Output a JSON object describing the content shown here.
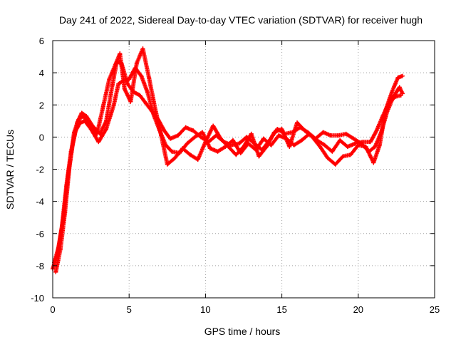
{
  "chart_data": {
    "type": "scatter",
    "title": "Day 241 of 2022, Sidereal Day-to-day VTEC variation (SDTVAR) for receiver hugh",
    "xlabel": "GPS time / hours",
    "ylabel": "SDTVAR / TECUs",
    "xlim": [
      0,
      25
    ],
    "ylim": [
      -10,
      6
    ],
    "xticks": [
      0,
      5,
      10,
      15,
      20,
      25
    ],
    "yticks": [
      -10,
      -8,
      -6,
      -4,
      -2,
      0,
      2,
      4,
      6
    ],
    "grid": true,
    "marker": "+",
    "series_color": "#ff0000",
    "series": [
      {
        "name": "trace-1",
        "x": [
          0.0,
          0.3,
          0.6,
          0.9,
          1.2,
          1.5,
          1.8,
          2.1,
          2.5,
          3.0,
          3.5,
          4.0,
          4.3,
          4.6,
          5.0,
          5.4,
          5.8,
          6.2,
          6.6,
          7.0,
          7.4,
          7.8,
          8.3,
          8.8,
          9.3,
          9.8,
          10.3,
          10.8,
          11.3,
          11.8,
          12.3,
          12.8,
          13.3,
          13.8,
          14.3,
          14.8,
          15.3,
          15.8,
          16.3,
          16.8,
          17.3,
          17.8,
          18.3,
          18.8,
          19.3,
          19.8,
          20.3,
          20.8,
          21.2,
          21.6,
          22.0,
          22.4,
          22.8
        ],
        "y": [
          -8.2,
          -7.3,
          -5.6,
          -3.0,
          -0.9,
          0.4,
          0.9,
          1.0,
          0.5,
          -0.3,
          0.5,
          2.0,
          3.3,
          3.5,
          3.6,
          4.3,
          3.8,
          2.8,
          1.4,
          0.4,
          -0.5,
          -0.9,
          -1.0,
          -0.4,
          0.0,
          0.3,
          -0.7,
          -0.9,
          -0.6,
          -0.2,
          -1.0,
          -0.4,
          -0.8,
          -0.1,
          -0.5,
          0.1,
          -0.1,
          -0.5,
          -0.2,
          0.2,
          -0.2,
          -0.5,
          -0.9,
          -0.2,
          -0.6,
          -0.4,
          -0.3,
          -0.3,
          0.4,
          1.3,
          2.1,
          2.5,
          2.6
        ]
      },
      {
        "name": "trace-2",
        "x": [
          0.1,
          0.4,
          0.7,
          1.0,
          1.3,
          1.6,
          1.9,
          2.2,
          2.6,
          3.1,
          3.5,
          3.9,
          4.2,
          4.5,
          4.9,
          5.3,
          5.7,
          6.1,
          6.5,
          6.9,
          7.3,
          7.7,
          8.2,
          8.7,
          9.2,
          9.7,
          10.2,
          10.7,
          11.2,
          11.7,
          12.2,
          12.7,
          13.2,
          13.7,
          14.2,
          14.7,
          15.2,
          15.7,
          16.2,
          16.7,
          17.2,
          17.7,
          18.2,
          18.7,
          19.2,
          19.7,
          20.2,
          20.7,
          21.1,
          21.5,
          21.9,
          22.3,
          22.7,
          22.9
        ],
        "y": [
          -7.8,
          -6.8,
          -5.0,
          -2.4,
          -0.5,
          0.9,
          1.5,
          1.3,
          0.7,
          0.2,
          1.0,
          3.2,
          4.7,
          4.6,
          3.3,
          2.8,
          2.6,
          2.1,
          1.6,
          1.1,
          0.4,
          -0.1,
          0.1,
          0.6,
          0.4,
          0.0,
          -0.3,
          0.1,
          -0.3,
          -0.5,
          -0.4,
          0.0,
          -0.4,
          -0.8,
          -0.2,
          0.5,
          0.2,
          0.3,
          0.6,
          0.3,
          -0.1,
          0.3,
          0.1,
          0.1,
          0.2,
          -0.1,
          -0.4,
          -0.9,
          -0.6,
          0.3,
          1.6,
          2.5,
          3.1,
          2.7
        ]
      },
      {
        "name": "trace-3",
        "x": [
          0.2,
          0.5,
          0.8,
          1.1,
          1.4,
          1.7,
          2.0,
          2.4,
          2.9,
          3.3,
          3.7,
          4.1,
          4.4,
          4.7,
          5.1,
          5.5,
          5.9,
          6.3,
          6.7,
          7.1,
          7.5,
          8.0,
          8.5,
          9.0,
          9.5,
          10.0,
          10.5,
          11.0,
          11.5,
          12.0,
          12.5,
          13.0,
          13.5,
          14.0,
          14.5,
          15.0,
          15.5,
          16.0,
          16.5,
          17.0,
          17.5,
          18.0,
          18.5,
          19.0,
          19.5,
          20.0,
          20.5,
          21.0,
          21.4,
          21.8,
          22.2,
          22.6,
          22.9
        ],
        "y": [
          -8.4,
          -7.0,
          -4.7,
          -1.8,
          0.3,
          1.1,
          1.3,
          0.8,
          0.2,
          1.9,
          3.6,
          4.5,
          5.2,
          3.0,
          2.2,
          4.6,
          5.5,
          3.7,
          1.8,
          0.1,
          -1.7,
          -1.3,
          -0.7,
          -1.1,
          -1.4,
          -0.3,
          0.7,
          -0.1,
          -0.6,
          -1.1,
          -0.6,
          0.2,
          -1.2,
          -0.6,
          0.3,
          0.5,
          -0.6,
          0.9,
          0.4,
          0.0,
          -0.6,
          -1.3,
          -1.7,
          -1.2,
          -1.1,
          -0.5,
          -0.6,
          -1.6,
          -0.5,
          1.7,
          2.8,
          3.7,
          3.8
        ]
      }
    ]
  }
}
